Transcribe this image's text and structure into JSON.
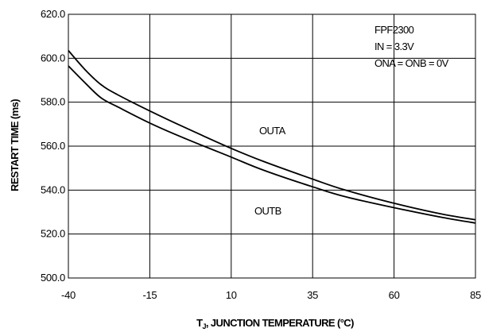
{
  "chart_data": {
    "type": "line",
    "xlabel": "T",
    "xlabel_sub": "J",
    "xlabel_rest": ", JUNCTION TEMPERATURE (°C)",
    "ylabel": "RESTART TIME (ms)",
    "xlim": [
      -40,
      85
    ],
    "ylim": [
      500,
      620
    ],
    "x_ticks": [
      "-40",
      "-15",
      "10",
      "35",
      "60",
      "85"
    ],
    "y_ticks": [
      "500.0",
      "520.0",
      "540.0",
      "560.0",
      "580.0",
      "600.0",
      "620.0"
    ],
    "grid": true,
    "annotations": {
      "conditions": [
        "FPF2300",
        "IN = 3.3V",
        "ONA = ONB = 0V"
      ],
      "outa": "OUTA",
      "outb": "OUTB"
    },
    "series": [
      {
        "name": "OUTA",
        "x": [
          -40,
          -35,
          -30,
          -25,
          -15,
          -5,
          10,
          20,
          35,
          45,
          60,
          75,
          85
        ],
        "y": [
          603.5,
          595.0,
          588.0,
          583.5,
          576.0,
          569.0,
          559.0,
          553.0,
          545.0,
          540.0,
          534.0,
          529.0,
          526.5
        ]
      },
      {
        "name": "OUTB",
        "x": [
          -40,
          -35,
          -30,
          -25,
          -15,
          -5,
          10,
          20,
          35,
          45,
          60,
          75,
          85
        ],
        "y": [
          596.5,
          589.0,
          582.0,
          578.0,
          570.5,
          564.0,
          555.0,
          549.0,
          541.5,
          537.0,
          532.0,
          527.5,
          525.0
        ]
      }
    ]
  }
}
